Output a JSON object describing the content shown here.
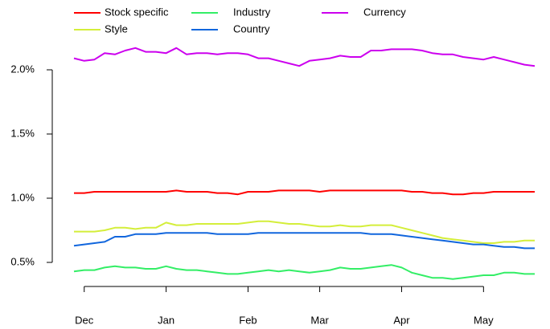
{
  "chart_data": {
    "type": "line",
    "categories": [
      null,
      "Dec",
      null,
      null,
      null,
      null,
      null,
      null,
      null,
      "Jan",
      null,
      null,
      null,
      null,
      null,
      null,
      null,
      "Feb",
      null,
      null,
      null,
      null,
      null,
      null,
      "Mar",
      null,
      null,
      null,
      null,
      null,
      null,
      null,
      "Apr",
      null,
      null,
      null,
      null,
      null,
      null,
      null,
      "May",
      null,
      null,
      null,
      null,
      null
    ],
    "series": [
      {
        "name": "Stock specific",
        "color": "#ff0000",
        "values": [
          1.04,
          1.04,
          1.05,
          1.05,
          1.05,
          1.05,
          1.05,
          1.05,
          1.05,
          1.05,
          1.06,
          1.05,
          1.05,
          1.05,
          1.04,
          1.04,
          1.03,
          1.05,
          1.05,
          1.05,
          1.06,
          1.06,
          1.06,
          1.06,
          1.05,
          1.06,
          1.06,
          1.06,
          1.06,
          1.06,
          1.06,
          1.06,
          1.06,
          1.05,
          1.05,
          1.04,
          1.04,
          1.03,
          1.03,
          1.04,
          1.04,
          1.05,
          1.05,
          1.05,
          1.05,
          1.05
        ]
      },
      {
        "name": "Style",
        "color": "#d4ee3a",
        "values": [
          0.74,
          0.74,
          0.74,
          0.75,
          0.77,
          0.77,
          0.76,
          0.77,
          0.77,
          0.81,
          0.79,
          0.79,
          0.8,
          0.8,
          0.8,
          0.8,
          0.8,
          0.81,
          0.82,
          0.82,
          0.81,
          0.8,
          0.8,
          0.79,
          0.78,
          0.78,
          0.79,
          0.78,
          0.78,
          0.79,
          0.79,
          0.79,
          0.77,
          0.75,
          0.73,
          0.71,
          0.69,
          0.68,
          0.67,
          0.66,
          0.65,
          0.65,
          0.66,
          0.66,
          0.67,
          0.67
        ]
      },
      {
        "name": "Industry",
        "color": "#33ee66",
        "values": [
          0.43,
          0.44,
          0.44,
          0.46,
          0.47,
          0.46,
          0.46,
          0.45,
          0.45,
          0.47,
          0.45,
          0.44,
          0.44,
          0.43,
          0.42,
          0.41,
          0.41,
          0.42,
          0.43,
          0.44,
          0.43,
          0.44,
          0.43,
          0.42,
          0.43,
          0.44,
          0.46,
          0.45,
          0.45,
          0.46,
          0.47,
          0.48,
          0.46,
          0.42,
          0.4,
          0.38,
          0.38,
          0.37,
          0.38,
          0.39,
          0.4,
          0.4,
          0.42,
          0.42,
          0.41,
          0.41
        ]
      },
      {
        "name": "Country",
        "color": "#1166dd",
        "values": [
          0.63,
          0.64,
          0.65,
          0.66,
          0.7,
          0.7,
          0.72,
          0.72,
          0.72,
          0.73,
          0.73,
          0.73,
          0.73,
          0.73,
          0.72,
          0.72,
          0.72,
          0.72,
          0.73,
          0.73,
          0.73,
          0.73,
          0.73,
          0.73,
          0.73,
          0.73,
          0.73,
          0.73,
          0.73,
          0.72,
          0.72,
          0.72,
          0.71,
          0.7,
          0.69,
          0.68,
          0.67,
          0.66,
          0.65,
          0.64,
          0.64,
          0.63,
          0.62,
          0.62,
          0.61,
          0.61
        ]
      },
      {
        "name": "Currency",
        "color": "#cc00ee",
        "values": [
          2.09,
          2.07,
          2.08,
          2.13,
          2.12,
          2.15,
          2.17,
          2.14,
          2.14,
          2.13,
          2.17,
          2.12,
          2.13,
          2.13,
          2.12,
          2.13,
          2.13,
          2.12,
          2.09,
          2.09,
          2.07,
          2.05,
          2.03,
          2.07,
          2.08,
          2.09,
          2.11,
          2.1,
          2.1,
          2.15,
          2.15,
          2.16,
          2.16,
          2.16,
          2.15,
          2.13,
          2.12,
          2.12,
          2.1,
          2.09,
          2.08,
          2.1,
          2.08,
          2.06,
          2.04,
          2.03
        ]
      }
    ],
    "ylim": [
      0.35,
      2.2
    ],
    "yticks": [
      {
        "value": 0.5,
        "label": "0.5%"
      },
      {
        "value": 1.0,
        "label": "1.0%"
      },
      {
        "value": 1.5,
        "label": "1.5%"
      },
      {
        "value": 2.0,
        "label": "2.0%"
      }
    ],
    "grid": false,
    "legend": "top"
  }
}
